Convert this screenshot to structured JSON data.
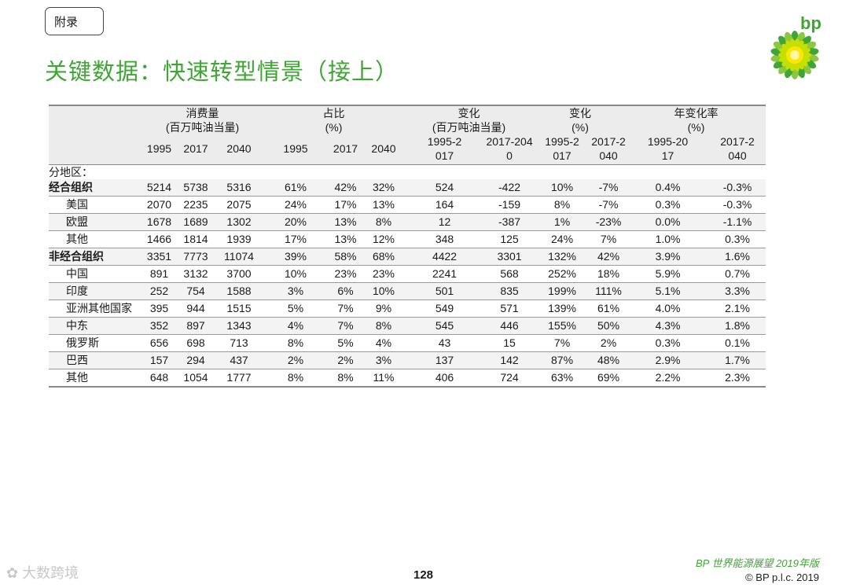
{
  "tag": "附录",
  "title": "关键数据：快速转型情景（接上）",
  "logo_text": "bp",
  "header": {
    "groups": [
      {
        "label": "消费量",
        "unit": "(百万吨油当量)"
      },
      {
        "label": "占比",
        "unit": "(%)"
      },
      {
        "label": "变化",
        "unit": "(百万吨油当量)"
      },
      {
        "label": "变化",
        "unit": "(%)"
      },
      {
        "label": "年变化率",
        "unit": "(%)"
      }
    ],
    "cols": [
      "1995",
      "2017",
      "2040",
      "1995",
      "2017",
      "2040",
      [
        "1995-2",
        "017"
      ],
      [
        "2017-204",
        "0"
      ],
      [
        "1995-2",
        "017"
      ],
      [
        "2017-2",
        "040"
      ],
      [
        "1995-20",
        "17"
      ],
      [
        "2017-2",
        "040"
      ]
    ]
  },
  "section_label": "分地区：",
  "rows": [
    {
      "label": "经合组织",
      "bold": true,
      "sub": false,
      "v": [
        "5214",
        "5738",
        "5316",
        "61%",
        "42%",
        "32%",
        "524",
        "-422",
        "10%",
        "-7%",
        "0.4%",
        "-0.3%"
      ]
    },
    {
      "label": "美国",
      "bold": false,
      "sub": true,
      "v": [
        "2070",
        "2235",
        "2075",
        "24%",
        "17%",
        "13%",
        "164",
        "-159",
        "8%",
        "-7%",
        "0.3%",
        "-0.3%"
      ]
    },
    {
      "label": "欧盟",
      "bold": false,
      "sub": true,
      "v": [
        "1678",
        "1689",
        "1302",
        "20%",
        "13%",
        "8%",
        "12",
        "-387",
        "1%",
        "-23%",
        "0.0%",
        "-1.1%"
      ]
    },
    {
      "label": "其他",
      "bold": false,
      "sub": true,
      "v": [
        "1466",
        "1814",
        "1939",
        "17%",
        "13%",
        "12%",
        "348",
        "125",
        "24%",
        "7%",
        "1.0%",
        "0.3%"
      ]
    },
    {
      "label": "非经合组织",
      "bold": true,
      "sub": false,
      "v": [
        "3351",
        "7773",
        "11074",
        "39%",
        "58%",
        "68%",
        "4422",
        "3301",
        "132%",
        "42%",
        "3.9%",
        "1.6%"
      ]
    },
    {
      "label": "中国",
      "bold": false,
      "sub": true,
      "v": [
        "891",
        "3132",
        "3700",
        "10%",
        "23%",
        "23%",
        "2241",
        "568",
        "252%",
        "18%",
        "5.9%",
        "0.7%"
      ]
    },
    {
      "label": "印度",
      "bold": false,
      "sub": true,
      "v": [
        "252",
        "754",
        "1588",
        "3%",
        "6%",
        "10%",
        "501",
        "835",
        "199%",
        "111%",
        "5.1%",
        "3.3%"
      ]
    },
    {
      "label": "亚洲其他国家",
      "bold": false,
      "sub": true,
      "v": [
        "395",
        "944",
        "1515",
        "5%",
        "7%",
        "9%",
        "549",
        "571",
        "139%",
        "61%",
        "4.0%",
        "2.1%"
      ]
    },
    {
      "label": "中东",
      "bold": false,
      "sub": true,
      "v": [
        "352",
        "897",
        "1343",
        "4%",
        "7%",
        "8%",
        "545",
        "446",
        "155%",
        "50%",
        "4.3%",
        "1.8%"
      ]
    },
    {
      "label": "俄罗斯",
      "bold": false,
      "sub": true,
      "v": [
        "656",
        "698",
        "713",
        "8%",
        "5%",
        "4%",
        "43",
        "15",
        "7%",
        "2%",
        "0.3%",
        "0.1%"
      ]
    },
    {
      "label": "巴西",
      "bold": false,
      "sub": true,
      "v": [
        "157",
        "294",
        "437",
        "2%",
        "2%",
        "3%",
        "137",
        "142",
        "87%",
        "48%",
        "2.9%",
        "1.7%"
      ]
    },
    {
      "label": "其他",
      "bold": false,
      "sub": true,
      "v": [
        "648",
        "1054",
        "1777",
        "8%",
        "8%",
        "11%",
        "406",
        "724",
        "63%",
        "69%",
        "2.2%",
        "2.3%"
      ]
    }
  ],
  "footer": {
    "brand": "BP 世界能源展望 2019年版",
    "copyright": "© BP p.l.c. 2019",
    "page": "128",
    "watermark": "大数跨境"
  },
  "colors": {
    "accent": "#3fa535",
    "rule": "#888888"
  }
}
